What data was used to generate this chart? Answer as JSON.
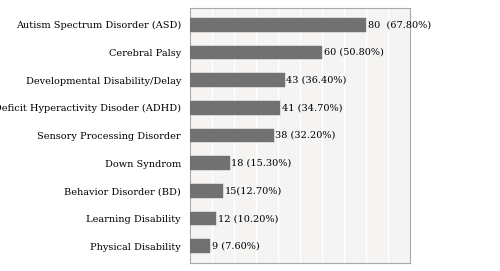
{
  "categories": [
    "Physical Disability",
    "Learning Disability",
    "Behavior Disorder (BD)",
    "Down Syndrom",
    "Sensory Processing Disorder",
    "Attention Deficit Hyperactivity Disoder (ADHD)",
    "Developmental Disability/Delay",
    "Cerebral Palsy",
    "Autism Spectrum Disorder (ASD)"
  ],
  "values": [
    9,
    12,
    15,
    18,
    38,
    41,
    43,
    60,
    80
  ],
  "labels": [
    "9 (7.60%)",
    "12 (10.20%)",
    "15(12.70%)",
    "18 (15.30%)",
    "38 (32.20%)",
    "41 (34.70%)",
    "43 (36.40%)",
    "60 (50.80%)",
    "80  (67.80%)"
  ],
  "bar_color": "#717171",
  "fig_background": "#ffffff",
  "plot_background": "#f5f4f2",
  "xlim": [
    0,
    100
  ],
  "bar_height": 0.5,
  "fontsize_labels": 7.0,
  "fontsize_ticks": 7.0,
  "grid_color": "#ffffff",
  "spine_color": "#aaaaaa",
  "outer_box_color": "#999999"
}
